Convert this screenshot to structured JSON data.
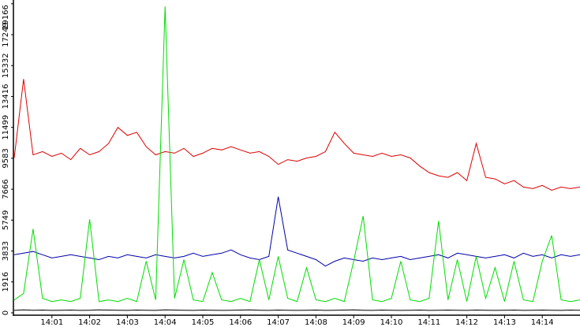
{
  "chart_data": {
    "type": "line",
    "x": [
      0,
      0.25,
      0.5,
      0.75,
      1,
      1.25,
      1.5,
      1.75,
      2,
      2.25,
      2.5,
      2.75,
      3,
      3.25,
      3.5,
      3.75,
      4,
      4.25,
      4.5,
      4.75,
      5,
      5.25,
      5.5,
      5.75,
      6,
      6.25,
      6.5,
      6.75,
      7,
      7.25,
      7.5,
      7.75,
      8,
      8.25,
      8.5,
      8.75,
      9,
      9.25,
      9.5,
      9.75,
      10,
      10.25,
      10.5,
      10.75,
      11,
      11.25,
      11.5,
      11.75,
      12,
      12.25,
      12.5,
      12.75,
      13,
      13.25,
      13.5,
      13.75,
      14,
      14.25,
      14.5,
      14.75,
      15
    ],
    "xlim": [
      0,
      15
    ],
    "xticks": [
      {
        "value": 1,
        "label": "14:01"
      },
      {
        "value": 2,
        "label": "14:02"
      },
      {
        "value": 3,
        "label": "14:03"
      },
      {
        "value": 4,
        "label": "14:04"
      },
      {
        "value": 5,
        "label": "14:05"
      },
      {
        "value": 6,
        "label": "14:06"
      },
      {
        "value": 7,
        "label": "14:07"
      },
      {
        "value": 8,
        "label": "14:08"
      },
      {
        "value": 9,
        "label": "14:09"
      },
      {
        "value": 10,
        "label": "14:10"
      },
      {
        "value": 11,
        "label": "14:11"
      },
      {
        "value": 12,
        "label": "14:12"
      },
      {
        "value": 13,
        "label": "14:13"
      },
      {
        "value": 14,
        "label": "14:14"
      }
    ],
    "ylim": [
      0,
      19400
    ],
    "yticks": [
      0,
      1916,
      3833,
      5749,
      7666,
      9583,
      11499,
      13416,
      15332,
      17249,
      19166
    ],
    "series": [
      {
        "color": "#dd0000",
        "values": [
          9600,
          14500,
          9800,
          10000,
          9700,
          9900,
          9500,
          10200,
          9800,
          10000,
          10500,
          11500,
          11000,
          11200,
          10300,
          9800,
          10000,
          9900,
          10200,
          9700,
          9900,
          10200,
          10100,
          10300,
          10100,
          9900,
          10000,
          9700,
          9200,
          9500,
          9400,
          9600,
          9700,
          10000,
          11200,
          10500,
          9900,
          9800,
          9700,
          9900,
          9700,
          9800,
          9600,
          9100,
          8700,
          8500,
          8400,
          8700,
          8200,
          10500,
          8400,
          8300,
          8000,
          8200,
          7800,
          7700,
          7900,
          7600,
          7800,
          7700,
          7800
        ]
      },
      {
        "color": "#0000aa",
        "values": [
          3600,
          3700,
          3800,
          3600,
          3400,
          3500,
          3600,
          3500,
          3400,
          3300,
          3500,
          3400,
          3600,
          3500,
          3400,
          3600,
          3500,
          3400,
          3500,
          3700,
          3500,
          3600,
          3700,
          3900,
          3600,
          3400,
          3300,
          3500,
          7200,
          3900,
          3700,
          3500,
          3300,
          2900,
          3200,
          3400,
          3300,
          3200,
          3400,
          3300,
          3400,
          3500,
          3300,
          3400,
          3500,
          3600,
          3400,
          3700,
          3600,
          3500,
          3400,
          3500,
          3600,
          3400,
          3700,
          3500,
          3600,
          3400,
          3600,
          3500,
          3600
        ]
      },
      {
        "color": "#00dd00",
        "values": [
          800,
          1200,
          5200,
          900,
          700,
          800,
          700,
          900,
          5800,
          700,
          800,
          700,
          900,
          700,
          3200,
          800,
          19000,
          900,
          3300,
          800,
          700,
          2500,
          800,
          700,
          900,
          700,
          3300,
          800,
          3500,
          900,
          700,
          2800,
          800,
          700,
          900,
          700,
          3200,
          6000,
          800,
          700,
          900,
          3200,
          800,
          700,
          900,
          5700,
          800,
          3300,
          700,
          3500,
          900,
          2800,
          700,
          3200,
          800,
          700,
          3200,
          4800,
          800,
          700,
          800
        ]
      },
      {
        "color": "#000000",
        "values": [
          150,
          180,
          160,
          170,
          150,
          160,
          170,
          150,
          160,
          180,
          170,
          160,
          150,
          170,
          160,
          150,
          180,
          170,
          160,
          150,
          170,
          160,
          150,
          160,
          170,
          180,
          160,
          150,
          170,
          160,
          150,
          160,
          170,
          150,
          160,
          170,
          180,
          160,
          150,
          170,
          160,
          150,
          160,
          170,
          150,
          160,
          170,
          160,
          150,
          170,
          160,
          150,
          160,
          170,
          150,
          160,
          170,
          160,
          150,
          170,
          160
        ]
      }
    ]
  }
}
